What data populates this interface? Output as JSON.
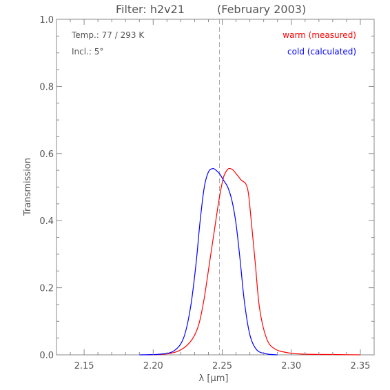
{
  "chart_data": {
    "type": "line",
    "title": "Filter: h2v21",
    "subtitle": "(February 2003)",
    "xlabel": "λ [μm]",
    "ylabel": "Transmission",
    "xlim": [
      2.13,
      2.36
    ],
    "ylim": [
      0.0,
      1.0
    ],
    "x_ticks": [
      "2.15",
      "2.20",
      "2.25",
      "2.30",
      "2.35"
    ],
    "y_ticks": [
      "0.0",
      "0.2",
      "0.4",
      "0.6",
      "0.8",
      "1.0"
    ],
    "annotations": [
      "Temp.: 77 / 293 K",
      "Incl.: 5°"
    ],
    "reference_line": {
      "x": 2.248,
      "style": "dashed",
      "color": "#aaaaaa"
    },
    "legend_position": "top-right",
    "series": [
      {
        "name": "warm (measured)",
        "color": "#ff0000",
        "x": [
          2.195,
          2.21,
          2.22,
          2.228,
          2.233,
          2.237,
          2.241,
          2.245,
          2.248,
          2.251,
          2.254,
          2.256,
          2.258,
          2.261,
          2.264,
          2.267,
          2.269,
          2.271,
          2.274,
          2.277,
          2.282,
          2.288,
          2.298,
          2.31,
          2.33,
          2.35
        ],
        "y": [
          0.0,
          0.003,
          0.015,
          0.045,
          0.09,
          0.17,
          0.28,
          0.39,
          0.47,
          0.53,
          0.553,
          0.555,
          0.55,
          0.535,
          0.52,
          0.51,
          0.48,
          0.4,
          0.27,
          0.14,
          0.05,
          0.018,
          0.006,
          0.002,
          0.001,
          0.0
        ]
      },
      {
        "name": "cold (calculated)",
        "color": "#0000ff",
        "x": [
          2.19,
          2.205,
          2.215,
          2.222,
          2.227,
          2.231,
          2.234,
          2.237,
          2.24,
          2.243,
          2.245,
          2.248,
          2.251,
          2.254,
          2.257,
          2.26,
          2.263,
          2.266,
          2.27,
          2.275,
          2.282,
          2.29
        ],
        "y": [
          0.0,
          0.002,
          0.012,
          0.05,
          0.14,
          0.27,
          0.4,
          0.5,
          0.545,
          0.555,
          0.552,
          0.54,
          0.52,
          0.5,
          0.46,
          0.39,
          0.28,
          0.16,
          0.06,
          0.015,
          0.003,
          0.0
        ]
      }
    ]
  }
}
